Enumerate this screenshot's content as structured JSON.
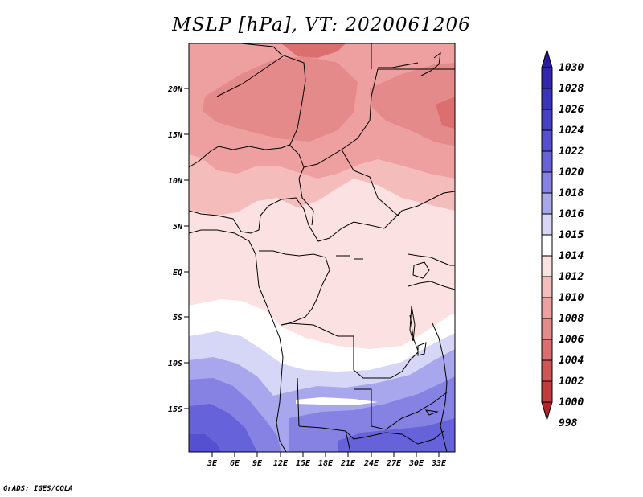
{
  "title": "MSLP [hPa], VT: 2020061206",
  "credit": "GrADS: IGES/COLA",
  "axes": {
    "lon_labels": [
      "3E",
      "6E",
      "9E",
      "12E",
      "15E",
      "18E",
      "21E",
      "24E",
      "27E",
      "30E",
      "33E"
    ],
    "lat_labels": [
      "20N",
      "15N",
      "10N",
      "5N",
      "EQ",
      "5S",
      "10S",
      "15S"
    ]
  },
  "colorbar": {
    "levels": [
      {
        "label": "1030",
        "color": "#2a1a9e"
      },
      {
        "label": "1028",
        "color": "#3226ae"
      },
      {
        "label": "1026",
        "color": "#3a33bb"
      },
      {
        "label": "1024",
        "color": "#4541c6"
      },
      {
        "label": "1022",
        "color": "#5450d0"
      },
      {
        "label": "1020",
        "color": "#6662d9"
      },
      {
        "label": "1018",
        "color": "#8582e3"
      },
      {
        "label": "1016",
        "color": "#a8a6ec"
      },
      {
        "label": "1015",
        "color": "#d6d6f6"
      },
      {
        "label": "1014",
        "color": "#ffffff"
      },
      {
        "label": "1012",
        "color": "#fbe1e1"
      },
      {
        "label": "1010",
        "color": "#f5bcbc"
      },
      {
        "label": "1008",
        "color": "#ee9f9f"
      },
      {
        "label": "1006",
        "color": "#e58a8a"
      },
      {
        "label": "1004",
        "color": "#db6f6f"
      },
      {
        "label": "1002",
        "color": "#d25555"
      },
      {
        "label": "1000",
        "color": "#c53b3b"
      },
      {
        "label": "998",
        "color": "#b02525"
      }
    ]
  }
}
